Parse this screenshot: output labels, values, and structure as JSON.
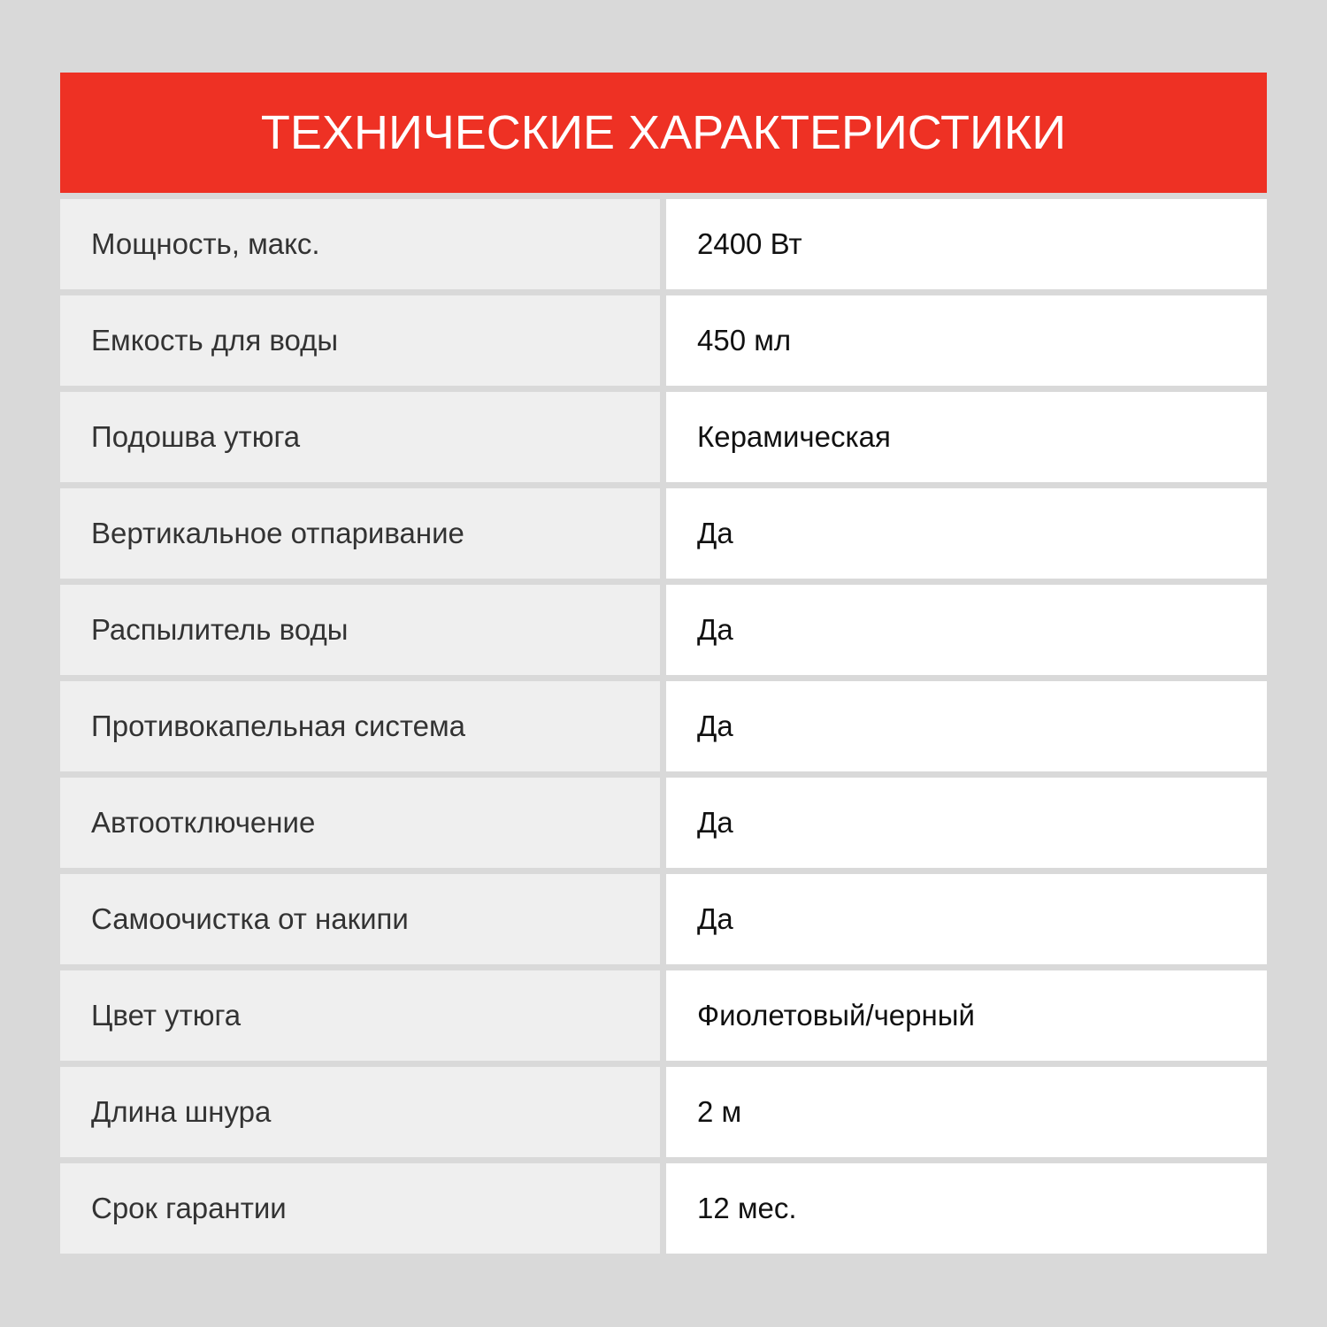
{
  "header": {
    "title": "ТЕХНИЧЕСКИЕ ХАРАКТЕРИСТИКИ"
  },
  "specs": [
    {
      "label": "Мощность, макс.",
      "value": "2400 Вт"
    },
    {
      "label": "Емкость для воды",
      "value": "450 мл"
    },
    {
      "label": "Подошва утюга",
      "value": "Керамическая"
    },
    {
      "label": "Вертикальное отпаривание",
      "value": "Да"
    },
    {
      "label": "Распылитель воды",
      "value": "Да"
    },
    {
      "label": "Противокапельная система",
      "value": "Да"
    },
    {
      "label": "Автоотключение",
      "value": "Да"
    },
    {
      "label": "Самоочистка от накипи",
      "value": "Да"
    },
    {
      "label": "Цвет утюга",
      "value": "Фиолетовый/черный"
    },
    {
      "label": "Длина шнура",
      "value": "2 м"
    },
    {
      "label": "Срок гарантии",
      "value": "12 мес."
    }
  ],
  "colors": {
    "accent": "#ee3124",
    "background": "#d9d9d9",
    "label_bg": "#efefef",
    "value_bg": "#ffffff"
  }
}
